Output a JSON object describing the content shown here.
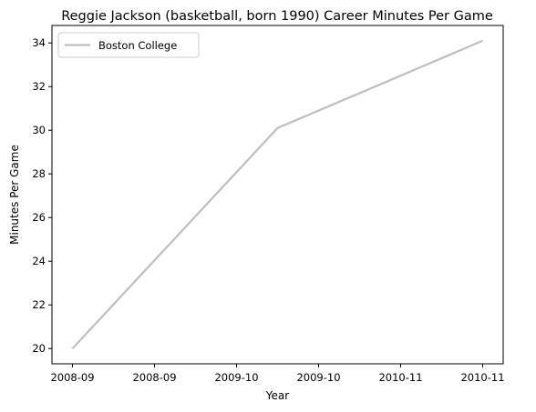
{
  "chart_data": {
    "type": "line",
    "title": "Reggie Jackson (basketball, born 1990) Career Minutes Per Game",
    "xlabel": "Year",
    "ylabel": "Minutes Per Game",
    "x_tick_labels": [
      "2008-09",
      "2008-09",
      "2009-10",
      "2009-10",
      "2010-11",
      "2010-11"
    ],
    "x_tick_values": [
      0,
      0.4,
      0.8,
      1.2,
      1.6,
      2.0
    ],
    "xlim": [
      -0.1,
      2.1
    ],
    "y_ticks": [
      20,
      22,
      24,
      26,
      28,
      30,
      32,
      34
    ],
    "ylim": [
      19.3,
      34.8
    ],
    "grid": false,
    "legend_position": "top-left",
    "series": [
      {
        "name": "Boston College",
        "color": "#bfbfbf",
        "x": [
          0,
          1,
          2
        ],
        "y": [
          20.0,
          30.1,
          34.1
        ]
      }
    ]
  }
}
